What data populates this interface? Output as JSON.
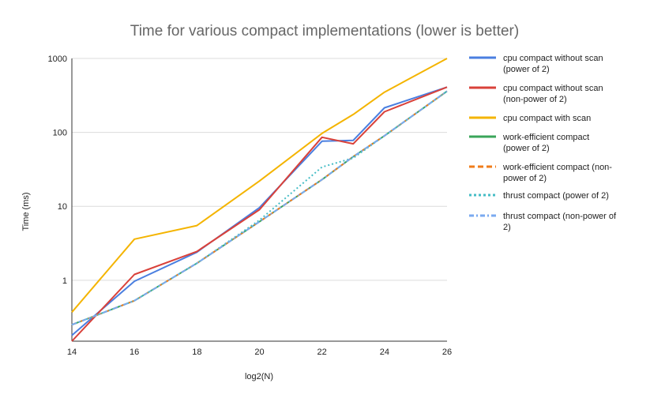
{
  "chart_data": {
    "type": "line",
    "title": "Time for various compact implementations (lower is better)",
    "xlabel": "log2(N)",
    "ylabel": "Time (ms)",
    "yscale": "log",
    "xlim": [
      14,
      26
    ],
    "ylim": [
      0.15,
      1000
    ],
    "x_ticks": [
      "14",
      "16",
      "18",
      "20",
      "22",
      "24",
      "26"
    ],
    "y_ticks": [
      "1",
      "10",
      "100",
      "1000"
    ],
    "grid": "horizontal",
    "legend": "right",
    "x": [
      14,
      16,
      18,
      20,
      22,
      23,
      24,
      26
    ],
    "series": [
      {
        "name": "cpu compact without scan (power of 2)",
        "color": "#4a7fe0",
        "style": "solid",
        "values": [
          0.18,
          0.97,
          2.4,
          9.6,
          76,
          78,
          215,
          410
        ]
      },
      {
        "name": "cpu compact without scan (non-power of 2)",
        "color": "#d9413a",
        "style": "solid",
        "values": [
          0.15,
          1.2,
          2.45,
          9.0,
          86,
          70,
          190,
          410
        ]
      },
      {
        "name": "cpu compact with scan",
        "color": "#f4b400",
        "style": "solid",
        "values": [
          0.37,
          3.6,
          5.5,
          22,
          97,
          175,
          350,
          1000
        ]
      },
      {
        "name": "work-efficient compact (power of 2)",
        "color": "#3aa55a",
        "style": "solid",
        "values": [
          0.25,
          0.53,
          1.7,
          6.2,
          23,
          47,
          90,
          360
        ]
      },
      {
        "name": "work-efficient compact (non-power of 2)",
        "color": "#f07c1a",
        "style": "dashed",
        "values": [
          0.25,
          0.53,
          1.7,
          6.2,
          23,
          47,
          90,
          360
        ]
      },
      {
        "name": "thrust compact (power of 2)",
        "color": "#46bdc6",
        "style": "dotted",
        "values": [
          0.25,
          0.53,
          1.7,
          6.5,
          34,
          45,
          90,
          360
        ]
      },
      {
        "name": "thrust compact (non-power of 2)",
        "color": "#7aaaf0",
        "style": "dashdot",
        "values": [
          0.25,
          0.53,
          1.7,
          6.2,
          23,
          47,
          90,
          360
        ]
      }
    ]
  },
  "legend_lines": [
    [
      "cpu compact without scan",
      "(power of 2)"
    ],
    [
      "cpu compact without scan",
      "(non-power of 2)"
    ],
    [
      "cpu compact with scan"
    ],
    [
      "work-efficient compact",
      "(power of 2)"
    ],
    [
      "work-efficient compact (non-",
      "power of 2)"
    ],
    [
      "thrust compact (power of 2)"
    ],
    [
      "thrust compact (non-power of",
      "2)"
    ]
  ]
}
